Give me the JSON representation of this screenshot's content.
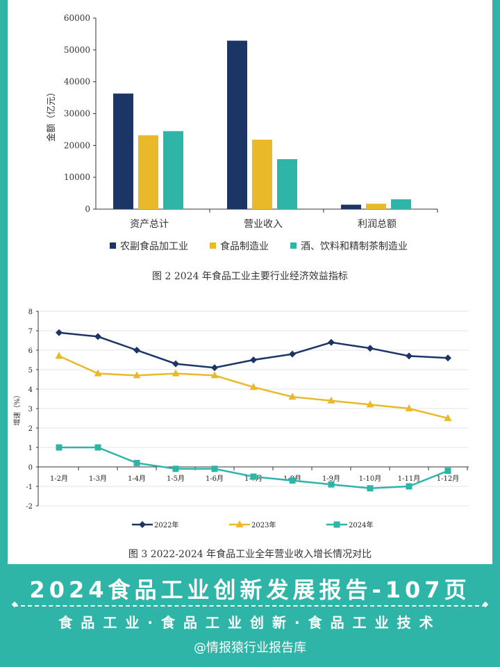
{
  "chart_data": [
    {
      "type": "bar",
      "title": "图 2  2024 年食品工业主要行业经济效益指标",
      "ylabel": "金额（亿元）",
      "xlabel": "",
      "ylim": [
        0,
        60000
      ],
      "yticks": [
        0,
        10000,
        20000,
        30000,
        40000,
        50000,
        60000
      ],
      "categories": [
        "资产总计",
        "营业收入",
        "利润总额"
      ],
      "series": [
        {
          "name": "农副食品加工业",
          "color": "#1b3566",
          "values": [
            36300,
            52900,
            1400
          ]
        },
        {
          "name": "食品制造业",
          "color": "#e9b929",
          "values": [
            23200,
            21800,
            1700
          ]
        },
        {
          "name": "酒、饮料和精制茶制造业",
          "color": "#2fb5a8",
          "values": [
            24500,
            15700,
            3100
          ]
        }
      ],
      "legend": "bottom",
      "grid": false
    },
    {
      "type": "line",
      "title": "图 3  2022-2024 年食品工业全年营业收入增长情况对比",
      "ylabel": "增速（%）",
      "xlabel": "",
      "ylim": [
        -2,
        8
      ],
      "yticks": [
        -2,
        -1,
        0,
        1,
        2,
        3,
        4,
        5,
        6,
        7,
        8
      ],
      "categories": [
        "1-2月",
        "1-3月",
        "1-4月",
        "1-5月",
        "1-6月",
        "1-7月",
        "1-8月",
        "1-9月",
        "1-10月",
        "1-11月",
        "1-12月"
      ],
      "series": [
        {
          "name": "2022年",
          "color": "#1b3566",
          "marker": "diamond",
          "values": [
            6.9,
            6.7,
            6.0,
            5.3,
            5.1,
            5.5,
            5.8,
            6.4,
            6.1,
            5.7,
            5.6
          ]
        },
        {
          "name": "2023年",
          "color": "#e9b929",
          "marker": "triangle",
          "values": [
            5.7,
            4.8,
            4.7,
            4.8,
            4.7,
            4.1,
            3.6,
            3.4,
            3.2,
            3.0,
            2.5
          ]
        },
        {
          "name": "2024年",
          "color": "#2fb5a8",
          "marker": "square",
          "values": [
            1.0,
            1.0,
            0.2,
            -0.1,
            -0.1,
            -0.5,
            -0.7,
            -0.9,
            -1.1,
            -1.0,
            -0.2
          ]
        }
      ],
      "legend": "bottom",
      "grid": true
    }
  ],
  "banner": {
    "title": "2024食品工业创新发展报告-107页",
    "subtitle": "食品工业·食品工业创新·食品工业技术",
    "author": "@情报猿行业报告库"
  }
}
